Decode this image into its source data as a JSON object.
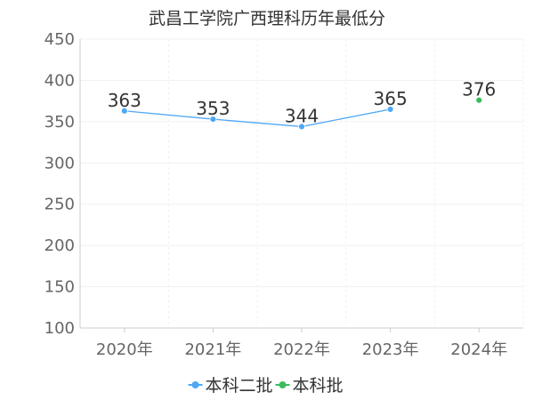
{
  "chart_data": {
    "type": "line",
    "title": "武昌工学院广西理科历年最低分",
    "categories": [
      "2020年",
      "2021年",
      "2022年",
      "2023年",
      "2024年"
    ],
    "ylim": [
      100,
      450
    ],
    "yticks": [
      100,
      150,
      200,
      250,
      300,
      350,
      400,
      450
    ],
    "grid": true,
    "legend_position": "bottom",
    "series": [
      {
        "name": "本科二批",
        "color": "#4fa8f5",
        "values": [
          363,
          353,
          344,
          365,
          null
        ]
      },
      {
        "name": "本科批",
        "color": "#3dbb5d",
        "values": [
          null,
          null,
          null,
          null,
          376
        ]
      }
    ]
  }
}
